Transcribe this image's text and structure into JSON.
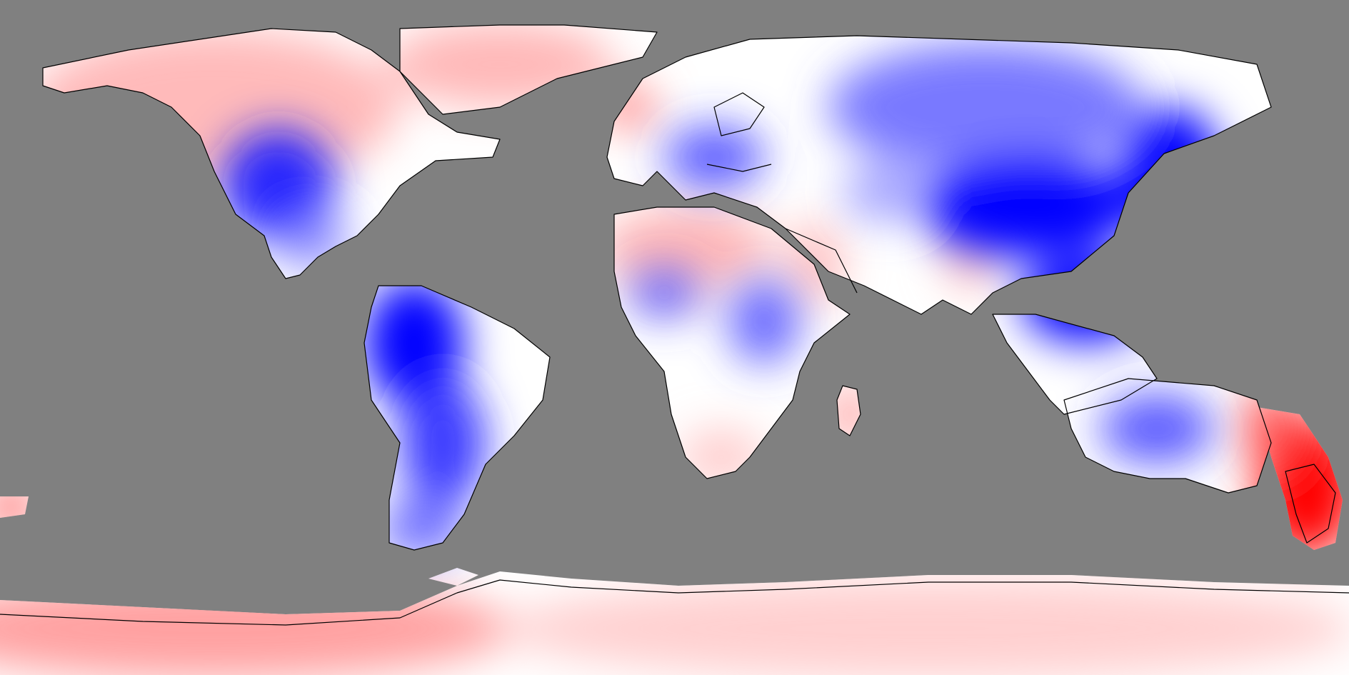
{
  "map": {
    "projection": "equirectangular",
    "extent": {
      "lon": [
        -180,
        180
      ],
      "lat": [
        -90,
        90
      ]
    },
    "ocean_color": "#808080",
    "coastline_color": "#000000",
    "colormap": {
      "negative": "#0000ff",
      "neutral": "#ffffff",
      "positive": "#ff0000"
    },
    "regions": [
      {
        "name": "north-america-west-anomaly",
        "sign": "negative",
        "intensity": 0.9
      },
      {
        "name": "canada-anomaly",
        "sign": "positive",
        "intensity": 0.25
      },
      {
        "name": "greenland-anomaly",
        "sign": "positive",
        "intensity": 0.3
      },
      {
        "name": "south-america-north-anomaly",
        "sign": "negative",
        "intensity": 1.0
      },
      {
        "name": "south-america-south-anomaly",
        "sign": "negative",
        "intensity": 0.8
      },
      {
        "name": "europe-anomaly",
        "sign": "negative",
        "intensity": 0.5
      },
      {
        "name": "sahara-anomaly",
        "sign": "positive",
        "intensity": 0.35
      },
      {
        "name": "central-africa-anomaly",
        "sign": "negative",
        "intensity": 0.6
      },
      {
        "name": "madagascar-anomaly",
        "sign": "positive",
        "intensity": 0.5
      },
      {
        "name": "siberia-anomaly",
        "sign": "negative",
        "intensity": 0.65
      },
      {
        "name": "east-asia-anomaly",
        "sign": "negative",
        "intensity": 1.0
      },
      {
        "name": "southeast-asia-anomaly",
        "sign": "negative",
        "intensity": 1.0
      },
      {
        "name": "india-anomaly",
        "sign": "positive",
        "intensity": 0.3
      },
      {
        "name": "australia-anomaly",
        "sign": "negative",
        "intensity": 0.6
      },
      {
        "name": "new-zealand-anomaly",
        "sign": "positive",
        "intensity": 1.0
      },
      {
        "name": "antarctica-anomaly",
        "sign": "positive",
        "intensity": 0.3
      }
    ]
  }
}
